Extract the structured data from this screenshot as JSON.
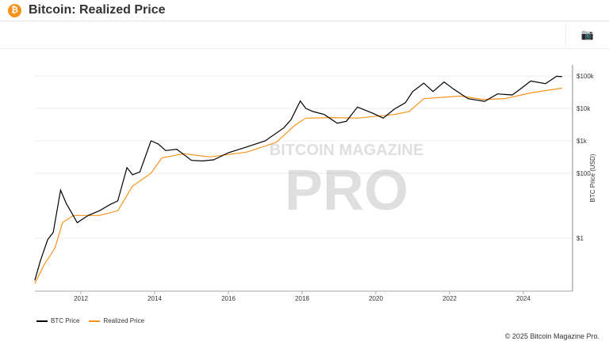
{
  "header": {
    "title": "Bitcoin: Realized Price",
    "logo_icon": "bitcoin-icon"
  },
  "toolbar": {
    "screenshot_icon": "camera-icon"
  },
  "watermark": {
    "line1": "BITCOIN MAGAZINE",
    "line2": "PRO"
  },
  "footer": {
    "copyright": "© 2025 Bitcoin Magazine Pro."
  },
  "chart_data": {
    "type": "line",
    "title": "",
    "xlabel": "",
    "ylabel": "BTC Price (USD)",
    "y_scale": "log",
    "xlim": [
      2010.75,
      2025.1
    ],
    "ylim": [
      0.027,
      200000
    ],
    "grid": true,
    "legend_position": "bottom-left",
    "x_ticks": [
      {
        "v": 2012,
        "label": "2012"
      },
      {
        "v": 2014,
        "label": "2014"
      },
      {
        "v": 2016,
        "label": "2016"
      },
      {
        "v": 2018,
        "label": "2018"
      },
      {
        "v": 2020,
        "label": "2020"
      },
      {
        "v": 2022,
        "label": "2022"
      },
      {
        "v": 2024,
        "label": "2024"
      }
    ],
    "y_ticks": [
      {
        "v": 1,
        "label": "$1"
      },
      {
        "v": 100,
        "label": "$100"
      },
      {
        "v": 1000,
        "label": "$1k"
      },
      {
        "v": 10000,
        "label": "$10k"
      },
      {
        "v": 100000,
        "label": "$100k"
      }
    ],
    "series": [
      {
        "name": "BTC Price",
        "color": "#000000",
        "points": [
          [
            2010.75,
            0.05
          ],
          [
            2010.9,
            0.2
          ],
          [
            2011.1,
            0.9
          ],
          [
            2011.25,
            1.5
          ],
          [
            2011.45,
            30
          ],
          [
            2011.6,
            12
          ],
          [
            2011.9,
            3
          ],
          [
            2012.2,
            5
          ],
          [
            2012.5,
            7
          ],
          [
            2012.8,
            11
          ],
          [
            2013.0,
            14
          ],
          [
            2013.25,
            150
          ],
          [
            2013.4,
            90
          ],
          [
            2013.6,
            110
          ],
          [
            2013.9,
            1000
          ],
          [
            2014.1,
            800
          ],
          [
            2014.3,
            500
          ],
          [
            2014.6,
            550
          ],
          [
            2015.0,
            250
          ],
          [
            2015.3,
            240
          ],
          [
            2015.6,
            260
          ],
          [
            2016.0,
            430
          ],
          [
            2016.5,
            650
          ],
          [
            2017.0,
            1000
          ],
          [
            2017.5,
            2500
          ],
          [
            2017.7,
            4500
          ],
          [
            2017.95,
            17000
          ],
          [
            2018.1,
            10000
          ],
          [
            2018.3,
            8000
          ],
          [
            2018.6,
            6500
          ],
          [
            2018.95,
            3500
          ],
          [
            2019.2,
            4000
          ],
          [
            2019.5,
            11000
          ],
          [
            2019.9,
            7200
          ],
          [
            2020.2,
            5000
          ],
          [
            2020.5,
            9500
          ],
          [
            2020.8,
            15000
          ],
          [
            2021.0,
            33000
          ],
          [
            2021.3,
            60000
          ],
          [
            2021.55,
            33000
          ],
          [
            2021.85,
            65000
          ],
          [
            2022.1,
            40000
          ],
          [
            2022.5,
            20000
          ],
          [
            2022.95,
            16500
          ],
          [
            2023.3,
            28000
          ],
          [
            2023.7,
            26000
          ],
          [
            2023.95,
            42000
          ],
          [
            2024.2,
            70000
          ],
          [
            2024.6,
            58000
          ],
          [
            2024.9,
            98000
          ],
          [
            2025.05,
            95000
          ]
        ]
      },
      {
        "name": "Realized Price",
        "color": "#f7931a",
        "points": [
          [
            2010.75,
            0.04
          ],
          [
            2011.0,
            0.15
          ],
          [
            2011.3,
            0.5
          ],
          [
            2011.5,
            3
          ],
          [
            2011.8,
            5
          ],
          [
            2012.5,
            5
          ],
          [
            2013.0,
            7
          ],
          [
            2013.4,
            40
          ],
          [
            2013.9,
            100
          ],
          [
            2014.2,
            300
          ],
          [
            2014.8,
            400
          ],
          [
            2015.5,
            320
          ],
          [
            2016.5,
            450
          ],
          [
            2017.3,
            900
          ],
          [
            2017.8,
            3000
          ],
          [
            2018.1,
            5000
          ],
          [
            2018.9,
            5200
          ],
          [
            2019.5,
            5000
          ],
          [
            2020.5,
            6500
          ],
          [
            2020.9,
            8000
          ],
          [
            2021.3,
            20000
          ],
          [
            2022.3,
            24000
          ],
          [
            2022.9,
            19000
          ],
          [
            2023.5,
            20000
          ],
          [
            2024.2,
            30000
          ],
          [
            2025.05,
            42000
          ]
        ]
      }
    ]
  }
}
